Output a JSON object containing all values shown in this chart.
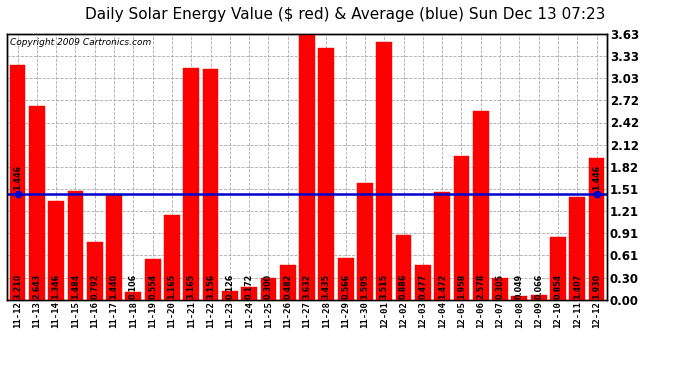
{
  "title": "Daily Solar Energy Value ($ red) & Average (blue) Sun Dec 13 07:23",
  "copyright": "Copyright 2009 Cartronics.com",
  "categories": [
    "11-12",
    "11-13",
    "11-14",
    "11-15",
    "11-16",
    "11-17",
    "11-18",
    "11-19",
    "11-20",
    "11-21",
    "11-22",
    "11-23",
    "11-24",
    "11-25",
    "11-26",
    "11-27",
    "11-28",
    "11-29",
    "11-30",
    "12-01",
    "12-02",
    "12-03",
    "12-04",
    "12-05",
    "12-06",
    "12-07",
    "12-08",
    "12-09",
    "12-10",
    "12-11",
    "12-12"
  ],
  "values": [
    3.21,
    2.643,
    1.346,
    1.484,
    0.792,
    1.44,
    0.106,
    0.554,
    1.165,
    3.165,
    3.156,
    0.126,
    0.172,
    0.3,
    0.482,
    3.632,
    3.435,
    0.566,
    1.595,
    3.515,
    0.886,
    0.477,
    1.472,
    1.958,
    2.578,
    0.305,
    0.049,
    0.066,
    0.854,
    1.407,
    1.93
  ],
  "average": 1.446,
  "bar_color": "#ff0000",
  "avg_line_color": "#0000cd",
  "avg_label": "1.446",
  "ylim": [
    0.0,
    3.63
  ],
  "yticks": [
    0.0,
    0.3,
    0.61,
    0.91,
    1.21,
    1.51,
    1.82,
    2.12,
    2.42,
    2.72,
    3.03,
    3.33,
    3.63
  ],
  "background_color": "#ffffff",
  "plot_bg_color": "#ffffff",
  "grid_color": "#aaaaaa",
  "title_fontsize": 11,
  "copyright_fontsize": 6.5,
  "bar_label_fontsize": 5.8,
  "tick_fontsize": 6.5,
  "right_ytick_fontsize": 8.5
}
